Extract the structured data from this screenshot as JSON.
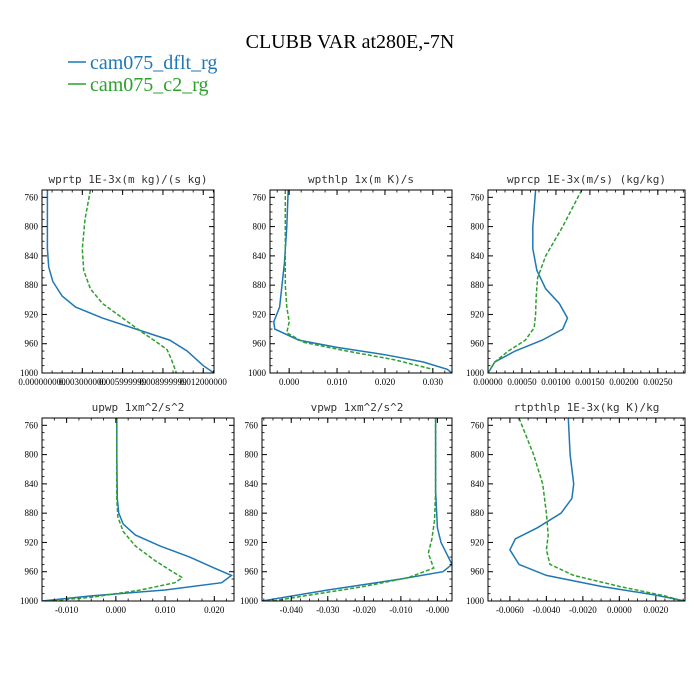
{
  "figure": {
    "title": "CLUBB VAR at280E,-7N",
    "legend": [
      {
        "name": "cam075_dflt_rg",
        "color": "#1f77b4",
        "dash": "solid"
      },
      {
        "name": "cam075_c2_rg",
        "color": "#2ca02c",
        "dash": "dashed"
      }
    ],
    "legend_placement": "top-left"
  },
  "chart_data": [
    {
      "type": "line",
      "title": "wprtp 1E-3x(m kg)/(s kg)",
      "xlim": [
        0,
        0.0128
      ],
      "ylim": [
        1000,
        750
      ],
      "y_inverted": true,
      "xticks": [
        0,
        0.003,
        0.006,
        0.009,
        0.012
      ],
      "xtick_labels": [
        "0.000000000",
        "0.003000000",
        "0.005999999",
        "0.008999999",
        "0.012000000"
      ],
      "yticks": [
        760,
        800,
        840,
        880,
        920,
        960,
        1000
      ],
      "series": [
        {
          "name": "cam075_dflt_rg",
          "x": [
            0.0004,
            0.0004,
            0.0004,
            0.0005,
            0.0008,
            0.0015,
            0.0025,
            0.0045,
            0.007,
            0.0095,
            0.0108,
            0.012,
            0.0128
          ],
          "y": [
            750,
            800,
            830,
            855,
            875,
            895,
            910,
            925,
            940,
            955,
            970,
            990,
            1000
          ]
        },
        {
          "name": "cam075_c2_rg",
          "x": [
            0.0036,
            0.0032,
            0.003,
            0.0031,
            0.0036,
            0.0045,
            0.006,
            0.0075,
            0.0087,
            0.0093,
            0.0096,
            0.01
          ],
          "y": [
            750,
            790,
            830,
            860,
            885,
            905,
            925,
            945,
            960,
            968,
            980,
            1000
          ]
        }
      ]
    },
    {
      "type": "line",
      "title": "wpthlp 1x(m K)/s",
      "xlim": [
        -0.004,
        0.034
      ],
      "ylim": [
        1000,
        750
      ],
      "y_inverted": true,
      "xticks": [
        0,
        0.01,
        0.02,
        0.03
      ],
      "xtick_labels": [
        "0.000",
        "0.010",
        "0.020",
        "0.030"
      ],
      "yticks": [
        760,
        800,
        840,
        880,
        920,
        960,
        1000
      ],
      "series": [
        {
          "name": "cam075_dflt_rg",
          "x": [
            -0.0002,
            -0.0005,
            -0.001,
            -0.0015,
            -0.002,
            -0.0032,
            -0.003,
            0.002,
            0.01,
            0.02,
            0.028,
            0.033,
            0.034
          ],
          "y": [
            750,
            800,
            850,
            880,
            910,
            930,
            940,
            955,
            965,
            975,
            985,
            995,
            1000
          ]
        },
        {
          "name": "cam075_c2_rg",
          "x": [
            -0.0008,
            -0.0008,
            -0.0008,
            -0.0008,
            -0.0005,
            0.0,
            -0.0005,
            0.003,
            0.012,
            0.022,
            0.03
          ],
          "y": [
            750,
            800,
            850,
            880,
            910,
            930,
            945,
            958,
            970,
            982,
            995
          ]
        }
      ]
    },
    {
      "type": "line",
      "title": "wprcp 1E-3x(m/s) (kg/kg)",
      "xlim": [
        0,
        0.0029
      ],
      "ylim": [
        1000,
        750
      ],
      "y_inverted": true,
      "xticks": [
        0,
        0.0005,
        0.001,
        0.0015,
        0.002,
        0.0025
      ],
      "xtick_labels": [
        "0.00000",
        "0.00050",
        "0.00100",
        "0.00150",
        "0.00200",
        "0.00250"
      ],
      "yticks": [
        760,
        800,
        840,
        880,
        920,
        960,
        1000
      ],
      "series": [
        {
          "name": "cam075_dflt_rg",
          "x": [
            0.0007,
            0.00066,
            0.00066,
            0.00072,
            0.00085,
            0.00105,
            0.00117,
            0.0011,
            0.0008,
            0.0004,
            0.0001,
            0.0
          ],
          "y": [
            750,
            800,
            830,
            860,
            885,
            905,
            925,
            940,
            955,
            970,
            985,
            1000
          ]
        },
        {
          "name": "cam075_c2_rg",
          "x": [
            0.00138,
            0.0011,
            0.00085,
            0.00073,
            0.00071,
            0.0007,
            0.00068,
            0.00055,
            0.0003,
            0.0001,
            0.0
          ],
          "y": [
            750,
            800,
            840,
            870,
            895,
            920,
            938,
            955,
            970,
            985,
            1000
          ]
        }
      ]
    },
    {
      "type": "line",
      "title": "upwp 1xm^2/s^2",
      "xlim": [
        -0.015,
        0.024
      ],
      "ylim": [
        1000,
        750
      ],
      "y_inverted": true,
      "xticks": [
        -0.01,
        0,
        0.01,
        0.02
      ],
      "xtick_labels": [
        "-0.010",
        "0.000",
        "0.010",
        "0.020"
      ],
      "yticks": [
        760,
        800,
        840,
        880,
        920,
        960,
        1000
      ],
      "series": [
        {
          "name": "cam075_dflt_rg",
          "x": [
            0.0002,
            0.0002,
            0.0003,
            0.0006,
            0.0015,
            0.004,
            0.009,
            0.015,
            0.02,
            0.0235,
            0.0215,
            0.01,
            -0.005,
            -0.015
          ],
          "y": [
            750,
            800,
            860,
            880,
            895,
            910,
            925,
            940,
            955,
            965,
            975,
            985,
            993,
            1000
          ]
        },
        {
          "name": "cam075_c2_rg",
          "x": [
            0.0002,
            0.0002,
            0.0004,
            0.0015,
            0.004,
            0.008,
            0.0115,
            0.0135,
            0.012,
            0.005,
            -0.005,
            -0.014
          ],
          "y": [
            750,
            860,
            885,
            905,
            925,
            945,
            960,
            968,
            975,
            985,
            995,
            1000
          ]
        }
      ]
    },
    {
      "type": "line",
      "title": "vpwp 1xm^2/s^2",
      "xlim": [
        -0.048,
        0.004
      ],
      "ylim": [
        1000,
        750
      ],
      "y_inverted": true,
      "xticks": [
        -0.04,
        -0.03,
        -0.02,
        -0.01,
        0
      ],
      "xtick_labels": [
        "-0.040",
        "-0.030",
        "-0.020",
        "-0.010",
        "-0.000"
      ],
      "yticks": [
        760,
        800,
        840,
        880,
        920,
        960,
        1000
      ],
      "series": [
        {
          "name": "cam075_dflt_rg",
          "x": [
            -0.0005,
            -0.0005,
            -0.0002,
            0.0,
            0.001,
            0.0025,
            0.004,
            0.0015,
            -0.01,
            -0.03,
            -0.048
          ],
          "y": [
            750,
            850,
            880,
            900,
            920,
            935,
            950,
            960,
            970,
            985,
            1000
          ]
        },
        {
          "name": "cam075_c2_rg",
          "x": [
            -0.0005,
            -0.0005,
            -0.0008,
            -0.0015,
            -0.0025,
            -0.001,
            -0.008,
            -0.02,
            -0.035,
            -0.045
          ],
          "y": [
            750,
            850,
            890,
            915,
            935,
            955,
            968,
            980,
            992,
            1000
          ]
        }
      ]
    },
    {
      "type": "line",
      "title": "rtpthlp 1E-3x(kg K)/kg",
      "xlim": [
        -0.0072,
        0.0036
      ],
      "ylim": [
        1000,
        750
      ],
      "y_inverted": true,
      "xticks": [
        -0.006,
        -0.004,
        -0.002,
        0,
        0.002
      ],
      "xtick_labels": [
        "-0.0060",
        "-0.0040",
        "-0.0020",
        "0.0000",
        "0.0020"
      ],
      "yticks": [
        760,
        800,
        840,
        880,
        920,
        960,
        1000
      ],
      "series": [
        {
          "name": "cam075_dflt_rg",
          "x": [
            -0.0028,
            -0.0027,
            -0.0025,
            -0.0026,
            -0.0032,
            -0.0045,
            -0.0057,
            -0.006,
            -0.0055,
            -0.004,
            -0.001,
            0.002,
            0.0036
          ],
          "y": [
            750,
            800,
            840,
            860,
            880,
            900,
            915,
            930,
            950,
            965,
            980,
            992,
            1000
          ]
        },
        {
          "name": "cam075_c2_rg",
          "x": [
            -0.0055,
            -0.0047,
            -0.0042,
            -0.004,
            -0.0039,
            -0.004,
            -0.0038,
            -0.0025,
            0.0,
            0.0025,
            0.0035
          ],
          "y": [
            750,
            800,
            840,
            880,
            910,
            930,
            950,
            965,
            980,
            993,
            1000
          ]
        }
      ]
    }
  ]
}
